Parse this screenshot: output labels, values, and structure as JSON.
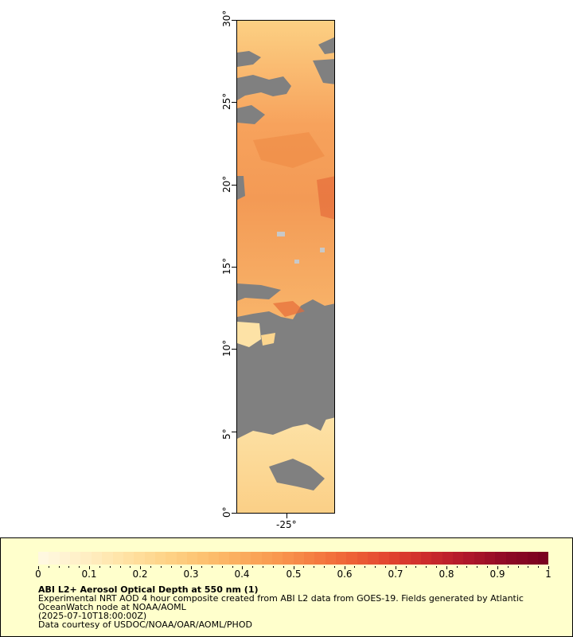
{
  "map": {
    "lat_labels": [
      "30°",
      "25°",
      "20°",
      "15°",
      "10°",
      "5°",
      "0°"
    ],
    "lon_labels": [
      "-25°"
    ],
    "lat_range": [
      0,
      30
    ],
    "land_no_data_color": "#808080"
  },
  "legend": {
    "title": "ABI L2+ Aerosol Optical Depth at 550 nm (1)",
    "lines": [
      "Experimental NRT AOD 4 hour composite created from ABI L2 data from GOES-19. Fields generated by Atlantic",
      "OceanWatch node at NOAA/AOML",
      "(2025-07-10T18:00:00Z)",
      "Data courtesy of USDOC/NOAA/OAR/AOML/PHOD"
    ],
    "ticks": [
      "0",
      "0.1",
      "0.2",
      "0.3",
      "0.4",
      "0.5",
      "0.6",
      "0.7",
      "0.8",
      "0.9",
      "1"
    ],
    "range": [
      0,
      1
    ],
    "colors": [
      "#fff8e0",
      "#ffefc6",
      "#ffe4a8",
      "#fed68c",
      "#fdc574",
      "#fbb060",
      "#f99a50",
      "#f57f42",
      "#ee6236",
      "#e24430",
      "#cc2a2c",
      "#b0172a",
      "#8f0a25",
      "#7a0020"
    ]
  }
}
